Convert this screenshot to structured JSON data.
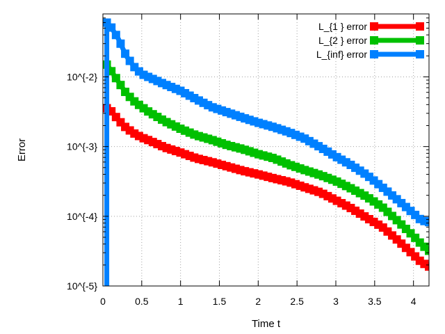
{
  "chart_data": {
    "type": "line",
    "title": "",
    "xlabel": "Time t",
    "ylabel": "Error",
    "x_scale": "linear",
    "y_scale": "log",
    "xlim": [
      0,
      4.2
    ],
    "ylim": [
      1e-05,
      0.08
    ],
    "grid": true,
    "legend_position": "top-right",
    "x_ticks": [
      0,
      0.5,
      1,
      1.5,
      2,
      2.5,
      3,
      3.5,
      4
    ],
    "x_tick_labels": [
      "0",
      "0.5",
      "1",
      "1.5",
      "2",
      "2.5",
      "3",
      "3.5",
      "4"
    ],
    "y_ticks": [
      1e-05,
      0.0001,
      0.001,
      0.01
    ],
    "y_tick_labels": [
      "10^{-5}",
      "10^{-4}",
      "10^{-3}",
      "10^{-2}"
    ],
    "x": [
      0.05,
      0.1,
      0.2,
      0.3,
      0.4,
      0.5,
      0.6,
      0.8,
      1.0,
      1.2,
      1.4,
      1.6,
      1.8,
      2.0,
      2.2,
      2.4,
      2.6,
      2.8,
      3.0,
      3.2,
      3.4,
      3.6,
      3.8,
      4.0,
      4.1,
      4.2
    ],
    "series": [
      {
        "name": "L_{1 } error",
        "color": "#ff0000",
        "values": [
          0.00355,
          0.0033,
          0.0024,
          0.00185,
          0.00155,
          0.00135,
          0.00122,
          0.00097,
          0.00082,
          0.00068,
          0.0006,
          0.00052,
          0.00045,
          0.0004,
          0.00035,
          0.00031,
          0.00026,
          0.00022,
          0.00017,
          0.00013,
          9.5e-05,
          7e-05,
          4.5e-05,
          2.8e-05,
          2.2e-05,
          1.9e-05
        ]
      },
      {
        "name": "L_{2 } error",
        "color": "#00c000",
        "values": [
          0.015,
          0.0125,
          0.0085,
          0.0058,
          0.0045,
          0.0037,
          0.0031,
          0.0023,
          0.0018,
          0.00145,
          0.00125,
          0.00105,
          0.00092,
          0.00078,
          0.00068,
          0.00055,
          0.00046,
          0.00039,
          0.00032,
          0.00025,
          0.00019,
          0.000135,
          8.5e-05,
          5.2e-05,
          4e-05,
          3.2e-05
        ]
      },
      {
        "name": "L_{inf} error",
        "color": "#0080ff",
        "values": [
          0.06,
          0.053,
          0.035,
          0.02,
          0.014,
          0.011,
          0.0098,
          0.0078,
          0.0063,
          0.0048,
          0.0037,
          0.0031,
          0.0026,
          0.0022,
          0.0019,
          0.0016,
          0.0013,
          0.00098,
          0.00072,
          0.00054,
          0.00039,
          0.00026,
          0.00017,
          0.00011,
          8.75e-05,
          8.25e-05
        ]
      }
    ]
  }
}
